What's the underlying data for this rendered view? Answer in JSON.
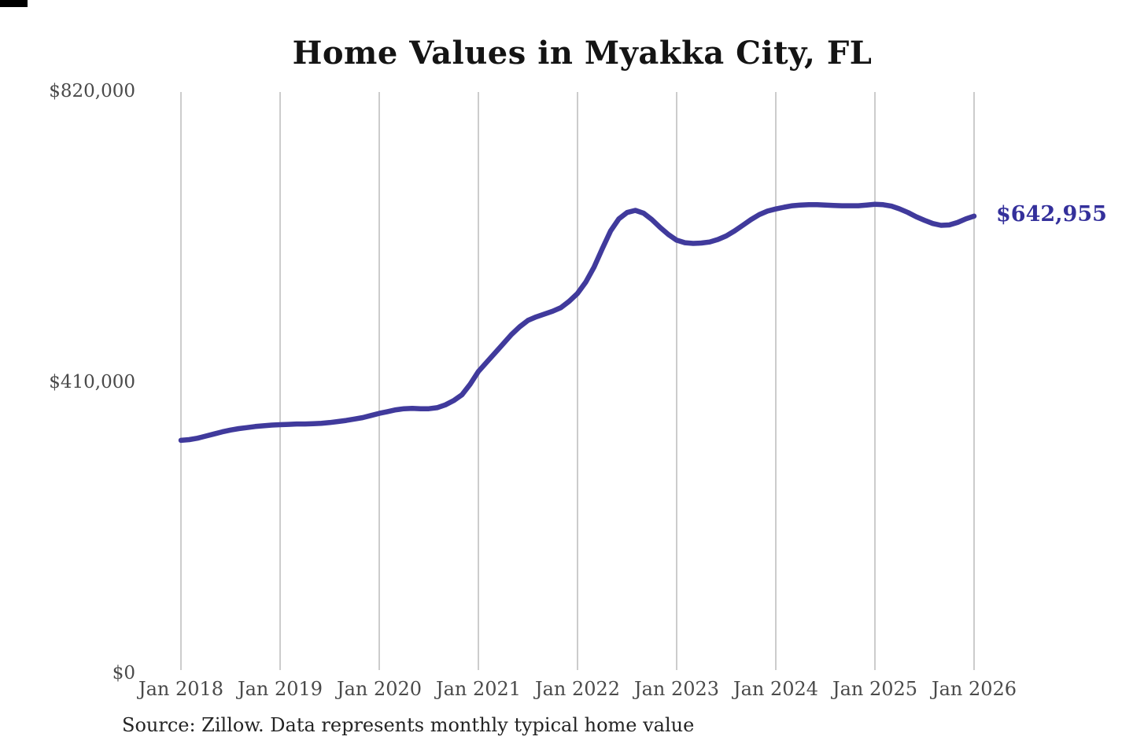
{
  "title": "Home Values in Myakka City, FL",
  "source_note": "Source: Zillow. Data represents monthly typical home value",
  "annotation": {
    "last_value_label": "$642,955"
  },
  "colors": {
    "background": "#ffffff",
    "line": "#403a9c",
    "end_label": "#34309b",
    "gridline": "#cccccc",
    "tick_label": "#4a4a4a",
    "title": "#141414",
    "source": "#242424",
    "corner_bar": "#000000"
  },
  "chart_data": {
    "type": "line",
    "title": "Home Values in Myakka City, FL",
    "xlabel": "",
    "ylabel": "",
    "ylim": [
      0,
      820000
    ],
    "xlim_years": [
      2018.0,
      2026.0
    ],
    "grid": "vertical-only",
    "legend": "none",
    "y_ticks": [
      {
        "value": 820000,
        "label": "$820,000"
      },
      {
        "value": 410000,
        "label": "$410,000"
      },
      {
        "value": 0,
        "label": "$0"
      }
    ],
    "x_ticks": [
      {
        "year": 2018,
        "label": "Jan 2018"
      },
      {
        "year": 2019,
        "label": "Jan 2019"
      },
      {
        "year": 2020,
        "label": "Jan 2020"
      },
      {
        "year": 2021,
        "label": "Jan 2021"
      },
      {
        "year": 2022,
        "label": "Jan 2022"
      },
      {
        "year": 2023,
        "label": "Jan 2023"
      },
      {
        "year": 2024,
        "label": "Jan 2024"
      },
      {
        "year": 2025,
        "label": "Jan 2025"
      },
      {
        "year": 2026,
        "label": "Jan 2026"
      }
    ],
    "series_name": "Typical home value (monthly)",
    "last_point": {
      "year": 2026.0,
      "value": 642955,
      "label": "$642,955"
    },
    "points": [
      [
        2018.0,
        327000
      ],
      [
        2018.083,
        328000
      ],
      [
        2018.167,
        330000
      ],
      [
        2018.25,
        333000
      ],
      [
        2018.333,
        336000
      ],
      [
        2018.417,
        339000
      ],
      [
        2018.5,
        341500
      ],
      [
        2018.583,
        343500
      ],
      [
        2018.667,
        345000
      ],
      [
        2018.75,
        346500
      ],
      [
        2018.833,
        347500
      ],
      [
        2018.917,
        348500
      ],
      [
        2019.0,
        349000
      ],
      [
        2019.083,
        349500
      ],
      [
        2019.167,
        350000
      ],
      [
        2019.25,
        350000
      ],
      [
        2019.333,
        350500
      ],
      [
        2019.417,
        351000
      ],
      [
        2019.5,
        352000
      ],
      [
        2019.583,
        353500
      ],
      [
        2019.667,
        355000
      ],
      [
        2019.75,
        357000
      ],
      [
        2019.833,
        359000
      ],
      [
        2019.917,
        362000
      ],
      [
        2020.0,
        365000
      ],
      [
        2020.083,
        367500
      ],
      [
        2020.167,
        370000
      ],
      [
        2020.25,
        371500
      ],
      [
        2020.333,
        372000
      ],
      [
        2020.417,
        371500
      ],
      [
        2020.5,
        371500
      ],
      [
        2020.583,
        373000
      ],
      [
        2020.667,
        377000
      ],
      [
        2020.75,
        383000
      ],
      [
        2020.833,
        391000
      ],
      [
        2020.917,
        406000
      ],
      [
        2021.0,
        424000
      ],
      [
        2021.083,
        437000
      ],
      [
        2021.167,
        450000
      ],
      [
        2021.25,
        463000
      ],
      [
        2021.333,
        476000
      ],
      [
        2021.417,
        487000
      ],
      [
        2021.5,
        496000
      ],
      [
        2021.583,
        501000
      ],
      [
        2021.667,
        505000
      ],
      [
        2021.75,
        509000
      ],
      [
        2021.833,
        514000
      ],
      [
        2021.917,
        523000
      ],
      [
        2022.0,
        534000
      ],
      [
        2022.083,
        550000
      ],
      [
        2022.167,
        571000
      ],
      [
        2022.25,
        597000
      ],
      [
        2022.333,
        622000
      ],
      [
        2022.417,
        639000
      ],
      [
        2022.5,
        648000
      ],
      [
        2022.583,
        651000
      ],
      [
        2022.667,
        647000
      ],
      [
        2022.75,
        638000
      ],
      [
        2022.833,
        627000
      ],
      [
        2022.917,
        617000
      ],
      [
        2023.0,
        609000
      ],
      [
        2023.083,
        605500
      ],
      [
        2023.167,
        604500
      ],
      [
        2023.25,
        605000
      ],
      [
        2023.333,
        606500
      ],
      [
        2023.417,
        610000
      ],
      [
        2023.5,
        615000
      ],
      [
        2023.583,
        622000
      ],
      [
        2023.667,
        630000
      ],
      [
        2023.75,
        638000
      ],
      [
        2023.833,
        645000
      ],
      [
        2023.917,
        650000
      ],
      [
        2024.0,
        653000
      ],
      [
        2024.083,
        655500
      ],
      [
        2024.167,
        657500
      ],
      [
        2024.25,
        658500
      ],
      [
        2024.333,
        659000
      ],
      [
        2024.417,
        659000
      ],
      [
        2024.5,
        658500
      ],
      [
        2024.583,
        658000
      ],
      [
        2024.667,
        657500
      ],
      [
        2024.75,
        657500
      ],
      [
        2024.833,
        657500
      ],
      [
        2024.917,
        658500
      ],
      [
        2025.0,
        659500
      ],
      [
        2025.083,
        659000
      ],
      [
        2025.167,
        657000
      ],
      [
        2025.25,
        653000
      ],
      [
        2025.333,
        648000
      ],
      [
        2025.417,
        642000
      ],
      [
        2025.5,
        637000
      ],
      [
        2025.583,
        632500
      ],
      [
        2025.667,
        630000
      ],
      [
        2025.75,
        630500
      ],
      [
        2025.833,
        634000
      ],
      [
        2025.917,
        639000
      ],
      [
        2026.0,
        642955
      ]
    ]
  }
}
